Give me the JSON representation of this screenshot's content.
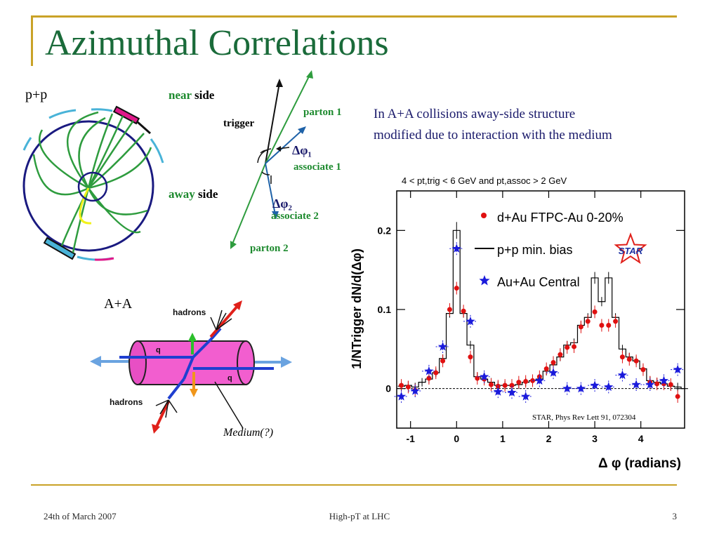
{
  "slide": {
    "title": "Azimuthal Correlations",
    "footer": {
      "date": "24th of  March 2007",
      "center": "High-pT at LHC",
      "page": "3"
    }
  },
  "pp_diagram": {
    "label": "p+p",
    "near_word": "near",
    "near_side": "side",
    "away_word": "away",
    "away_side": "side",
    "trigger": "trigger",
    "parton1": "parton 1",
    "parton2": "parton 2",
    "dphi1": "Δφ₁",
    "dphi2": "Δφ₂",
    "associate1": "associate 1",
    "associate2": "associate 2"
  },
  "aa_diagram": {
    "label": "A+A",
    "hadrons_top": "hadrons",
    "hadrons_bottom": "hadrons",
    "q1": "q",
    "q2": "q",
    "medium": "Medium(?)"
  },
  "text_block": {
    "line1": "In A+A collisions away-side structure",
    "line2": "modified due to interaction with the medium"
  },
  "chart_data": {
    "type": "scatter",
    "caption": "4 < pt,trig < 6 GeV and pt,assoc > 2 GeV",
    "xlabel": "Δ φ (radians)",
    "ylabel": "1/NTrigger dN/d(Δφ)",
    "xlim": [
      -1.3,
      4.95
    ],
    "ylim": [
      -0.05,
      0.25
    ],
    "xticks": [
      "-1",
      "0",
      "1",
      "2",
      "3",
      "4"
    ],
    "yticks": [
      "0",
      "0.1",
      "0.2"
    ],
    "reference": "STAR, Phys Rev Lett 91, 072304",
    "logo": "STAR",
    "legend": [
      "d+Au FTPC-Au 0-20%",
      "p+p min. bias",
      "Au+Au Central"
    ],
    "series": [
      {
        "name": "d+Au FTPC-Au 0-20%",
        "color": "#e01010",
        "x": [
          -1.2,
          -1.05,
          -0.9,
          -0.6,
          -0.45,
          -0.3,
          -0.15,
          0.0,
          0.15,
          0.3,
          0.45,
          0.6,
          0.75,
          0.9,
          1.05,
          1.2,
          1.35,
          1.5,
          1.65,
          1.8,
          1.95,
          2.1,
          2.25,
          2.4,
          2.55,
          2.7,
          2.85,
          3.0,
          3.15,
          3.3,
          3.45,
          3.6,
          3.75,
          3.9,
          4.05,
          4.2,
          4.35,
          4.5,
          4.65,
          4.8
        ],
        "y": [
          0.004,
          0.002,
          -0.002,
          0.013,
          0.02,
          0.035,
          0.1,
          0.127,
          0.098,
          0.04,
          0.013,
          0.012,
          0.005,
          0.003,
          0.004,
          0.004,
          0.008,
          0.009,
          0.01,
          0.015,
          0.025,
          0.033,
          0.043,
          0.052,
          0.053,
          0.078,
          0.085,
          0.097,
          0.08,
          0.08,
          0.085,
          0.04,
          0.037,
          0.035,
          0.024,
          0.008,
          0.006,
          0.006,
          0.005,
          -0.01
        ]
      },
      {
        "name": "p+p min. bias",
        "color": "#000000",
        "x": [
          -1.2,
          -1.05,
          -0.9,
          -0.75,
          -0.6,
          -0.45,
          -0.3,
          -0.15,
          0.0,
          0.15,
          0.3,
          0.45,
          0.6,
          0.75,
          0.9,
          1.05,
          1.2,
          1.35,
          1.5,
          1.65,
          1.8,
          1.95,
          2.1,
          2.25,
          2.4,
          2.55,
          2.7,
          2.85,
          3.0,
          3.15,
          3.3,
          3.45,
          3.6,
          3.75,
          3.9,
          4.05,
          4.2,
          4.35,
          4.5,
          4.65,
          4.8,
          4.95
        ],
        "y": [
          0.003,
          0.004,
          0.002,
          0.008,
          0.012,
          0.02,
          0.038,
          0.095,
          0.2,
          0.095,
          0.055,
          0.015,
          0.012,
          0.008,
          0.004,
          0.004,
          0.004,
          0.005,
          0.008,
          0.01,
          0.012,
          0.022,
          0.03,
          0.04,
          0.055,
          0.058,
          0.08,
          0.09,
          0.14,
          0.11,
          0.14,
          0.09,
          0.05,
          0.04,
          0.035,
          0.025,
          0.01,
          0.008,
          0.006,
          0.003,
          0.002,
          0.0
        ]
      },
      {
        "name": "Au+Au Central",
        "color": "#1a1adb",
        "x": [
          -1.2,
          -0.9,
          -0.6,
          -0.3,
          0.0,
          0.3,
          0.6,
          0.9,
          1.2,
          1.5,
          1.8,
          2.1,
          2.4,
          2.7,
          3.0,
          3.3,
          3.6,
          3.9,
          4.2,
          4.5,
          4.8
        ],
        "y": [
          -0.01,
          -0.003,
          0.022,
          0.053,
          0.177,
          0.085,
          0.015,
          -0.004,
          -0.005,
          -0.01,
          0.01,
          0.02,
          0.0,
          0.0,
          0.004,
          0.002,
          0.017,
          0.005,
          0.005,
          0.01,
          0.024
        ]
      }
    ]
  }
}
